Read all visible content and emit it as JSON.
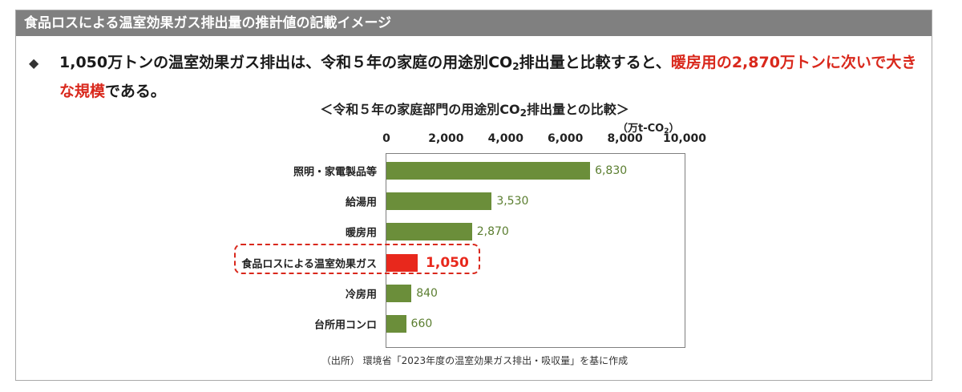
{
  "header": {
    "title": "食品ロスによる温室効果ガス排出量の推計値の記載イメージ"
  },
  "bullet": {
    "symbol": "◆",
    "part1": "1,050万トンの温室効果ガス排出は、令和５年の家庭の用途別CO",
    "sub2": "2",
    "part2": "排出量と比較すると、",
    "highlight": "暖房用の2,870万トンに次いで大きな規模",
    "part3": "である。"
  },
  "chart_title": {
    "prefix": "＜令和５年の家庭部門の用途別CO",
    "sub": "2",
    "suffix": "排出量との比較＞"
  },
  "unit": {
    "prefix": "（万t-CO",
    "sub": "2",
    "suffix": "）"
  },
  "source": "（出所） 環境省「2023年度の温室効果ガス排出・吸収量」を基に作成",
  "colors": {
    "bar": "#6b8e3a",
    "highlight": "#e8281c",
    "value_text": "#5a7d2f"
  },
  "chart_data": {
    "type": "bar",
    "orientation": "horizontal",
    "categories": [
      "照明・家電製品等",
      "給湯用",
      "暖房用",
      "食品ロスによる温室効果ガス",
      "冷房用",
      "台所用コンロ"
    ],
    "values": [
      6830,
      3530,
      2870,
      1050,
      840,
      660
    ],
    "value_labels": [
      "6,830",
      "3,530",
      "2,870",
      "1,050",
      "840",
      "660"
    ],
    "highlight_index": 3,
    "xlim": [
      0,
      10000
    ],
    "xticks": [
      0,
      2000,
      4000,
      6000,
      8000,
      10000
    ],
    "xtick_labels": [
      "0",
      "2,000",
      "4,000",
      "6,000",
      "8,000",
      "10,000"
    ],
    "grid": false
  }
}
